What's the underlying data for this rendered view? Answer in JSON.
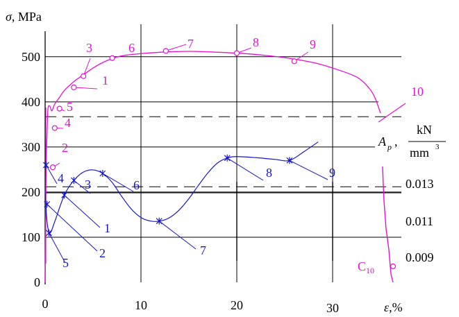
{
  "chart_data": {
    "type": "line",
    "axes": {
      "x": {
        "label": "ε,%",
        "ticks": [
          0,
          10,
          20,
          30
        ],
        "range": [
          0,
          37
        ]
      },
      "y_left": {
        "label": "σ, MPa",
        "ticks": [
          0,
          100,
          200,
          300,
          400,
          500
        ],
        "range": [
          0,
          540
        ]
      },
      "y_right": {
        "label_symbol": "A",
        "label_subscript": "p",
        "unit_numerator": "kN",
        "unit_denominator": "mm",
        "unit_power": "3",
        "ticks": [
          "0.013",
          "0.011",
          "0.009"
        ]
      }
    },
    "grid": true,
    "colors": {
      "stress": "#e60fd6",
      "energy": "#1515d0",
      "axis": "#000000",
      "grid": "#000000"
    },
    "series": [
      {
        "curve": "stress",
        "x": [
          0,
          0.1,
          0.2,
          0.3,
          0.5,
          0.7,
          1,
          1.5,
          2,
          3,
          4,
          5,
          6,
          7,
          8,
          10,
          12,
          15,
          18,
          20,
          22,
          25,
          28,
          30,
          32,
          33,
          34,
          34.5,
          35
        ],
        "y": [
          0,
          250,
          330,
          385,
          390,
          380,
          395,
          410,
          425,
          445,
          460,
          475,
          487,
          496,
          502,
          507,
          510,
          512,
          510,
          508,
          505,
          498,
          487,
          475,
          460,
          448,
          425,
          405,
          375
        ],
        "markers": [
          {
            "label": "1",
            "x": 3.0,
            "y": 432
          },
          {
            "label": "2",
            "x": 0.8,
            "y": 255
          },
          {
            "label": "3",
            "x": 4.0,
            "y": 457
          },
          {
            "label": "4",
            "x": 1.0,
            "y": 342
          },
          {
            "label": "5",
            "x": 1.5,
            "y": 385
          },
          {
            "label": "6",
            "x": 7.0,
            "y": 497
          },
          {
            "label": "7",
            "x": 12.6,
            "y": 513
          },
          {
            "label": "8",
            "x": 20.0,
            "y": 508
          },
          {
            "label": "9",
            "x": 26.0,
            "y": 490
          }
        ],
        "tail_label": "10",
        "tail_point": {
          "x": 35,
          "y": 375
        }
      },
      {
        "curve": "energy",
        "x": [
          0,
          0.2,
          0.5,
          1,
          2,
          3,
          4,
          5,
          6,
          7,
          8,
          9,
          10,
          11,
          12,
          13,
          14,
          15,
          16,
          17,
          18,
          19,
          20,
          22,
          24,
          25.5,
          27,
          28.5
        ],
        "y": [
          0.0109,
          0.01,
          0.00968,
          0.01,
          0.01076,
          0.01118,
          0.01142,
          0.01148,
          0.01138,
          0.01112,
          0.01072,
          0.01036,
          0.01012,
          0.01002,
          0.01002,
          0.01012,
          0.01034,
          0.01066,
          0.01104,
          0.0114,
          0.01168,
          0.01182,
          0.01186,
          0.01183,
          0.01178,
          0.01175,
          0.012,
          0.01228
        ],
        "markers": [
          {
            "label": "1",
            "x": 2.0,
            "y": 0.01076
          },
          {
            "label": "2",
            "x": 0.2,
            "y": 0.0105
          },
          {
            "label": "3",
            "x": 3.0,
            "y": 0.01118
          },
          {
            "label": "4",
            "x": 0.1,
            "y": 0.01162
          },
          {
            "label": "5",
            "x": 0.4,
            "y": 0.00968
          },
          {
            "label": "6",
            "x": 6.0,
            "y": 0.01138
          },
          {
            "label": "7",
            "x": 11.9,
            "y": 0.01002
          },
          {
            "label": "8",
            "x": 19.0,
            "y": 0.01182
          },
          {
            "label": "9",
            "x": 25.5,
            "y": 0.01175
          }
        ],
        "tail_label": "C",
        "tail_subscript": "10",
        "tail_point": {
          "x": 36.2,
          "y": 0.0087
        }
      }
    ]
  }
}
